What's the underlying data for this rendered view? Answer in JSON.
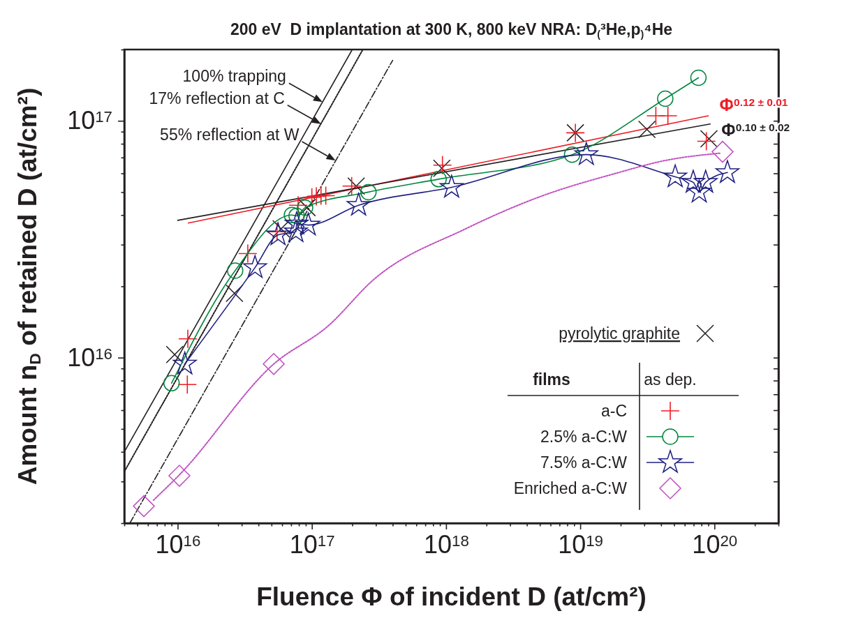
{
  "chart_data": {
    "type": "scatter",
    "title": "200 eV  D implantation at 300 K, 800 keV NRA: D$_{(}$³He,p$_{)}$⁴He",
    "xlabel": "Fluence Φ of incident D (at/cm²)",
    "ylabel": "Amount n$_{D}$ of retained D (at/cm²)",
    "legend_title": "films",
    "log": "xy",
    "grid": false,
    "legend": "bottom right",
    "xlim": [
      4000000000000000.0,
      3e+20
    ],
    "ylim": [
      2000000000000000.0,
      2e+17
    ],
    "xticks": [
      {
        "value": 4000000000000000.0,
        "label": null
      },
      {
        "value": 5000000000000000.0,
        "label": null
      },
      {
        "value": 6000000000000000.0,
        "label": null
      },
      {
        "value": 7000000000000000.0,
        "label": null
      },
      {
        "value": 8000000000000000.0,
        "label": null
      },
      {
        "value": 9000000000000000.0,
        "label": null
      },
      {
        "value": 1e+16,
        "label": "10$^{16}$"
      },
      {
        "value": 2e+16,
        "label": null
      },
      {
        "value": 3e+16,
        "label": null
      },
      {
        "value": 4e+16,
        "label": null
      },
      {
        "value": 5e+16,
        "label": null
      },
      {
        "value": 6e+16,
        "label": null
      },
      {
        "value": 7e+16,
        "label": null
      },
      {
        "value": 8e+16,
        "label": null
      },
      {
        "value": 9e+16,
        "label": null
      },
      {
        "value": 1e+17,
        "label": "10$^{17}$"
      },
      {
        "value": 2e+17,
        "label": null
      },
      {
        "value": 3e+17,
        "label": null
      },
      {
        "value": 4e+17,
        "label": null
      },
      {
        "value": 5e+17,
        "label": null
      },
      {
        "value": 6e+17,
        "label": null
      },
      {
        "value": 7e+17,
        "label": null
      },
      {
        "value": 8e+17,
        "label": null
      },
      {
        "value": 9e+17,
        "label": null
      },
      {
        "value": 1e+18,
        "label": "10$^{18}$"
      },
      {
        "value": 2e+18,
        "label": null
      },
      {
        "value": 3e+18,
        "label": null
      },
      {
        "value": 4e+18,
        "label": null
      },
      {
        "value": 5e+18,
        "label": null
      },
      {
        "value": 6e+18,
        "label": null
      },
      {
        "value": 7e+18,
        "label": null
      },
      {
        "value": 8e+18,
        "label": null
      },
      {
        "value": 9e+18,
        "label": null
      },
      {
        "value": 1e+19,
        "label": "10$^{19}$"
      },
      {
        "value": 2e+19,
        "label": null
      },
      {
        "value": 3e+19,
        "label": null
      },
      {
        "value": 4e+19,
        "label": null
      },
      {
        "value": 5e+19,
        "label": null
      },
      {
        "value": 6e+19,
        "label": null
      },
      {
        "value": 7e+19,
        "label": null
      },
      {
        "value": 8e+19,
        "label": null
      },
      {
        "value": 9e+19,
        "label": null
      },
      {
        "value": 1e+20,
        "label": "10$^{20}$"
      },
      {
        "value": 2e+20,
        "label": null
      },
      {
        "value": 3e+20,
        "label": null
      }
    ],
    "yticks": [
      {
        "value": 2000000000000000.0,
        "label": null
      },
      {
        "value": 3000000000000000.0,
        "label": null
      },
      {
        "value": 4000000000000000.0,
        "label": null
      },
      {
        "value": 5000000000000000.0,
        "label": null
      },
      {
        "value": 6000000000000000.0,
        "label": null
      },
      {
        "value": 7000000000000000.0,
        "label": null
      },
      {
        "value": 8000000000000000.0,
        "label": null
      },
      {
        "value": 9000000000000000.0,
        "label": null
      },
      {
        "value": 1e+16,
        "label": "10$^{16}$"
      },
      {
        "value": 2e+16,
        "label": null
      },
      {
        "value": 3e+16,
        "label": null
      },
      {
        "value": 4e+16,
        "label": null
      },
      {
        "value": 5e+16,
        "label": null
      },
      {
        "value": 6e+16,
        "label": null
      },
      {
        "value": 7e+16,
        "label": null
      },
      {
        "value": 8e+16,
        "label": null
      },
      {
        "value": 9e+16,
        "label": null
      },
      {
        "value": 1e+17,
        "label": "10$^{17}$"
      },
      {
        "value": 2e+17,
        "label": null
      }
    ],
    "annotations": [
      {
        "text": "100% trapping",
        "x": 1.2e+17,
        "y": 1.2e+17
      },
      {
        "text": "17% reflection at C",
        "x": 1.17e+17,
        "y": 9.7e+16
      },
      {
        "text": "55% reflection at W",
        "x": 1.5e+17,
        "y": 6.8e+16
      },
      "as dep."
    ],
    "series": [
      {
        "type": "line",
        "color": "#231f20",
        "line_style": "solid",
        "x": [
          4000000000000000.0,
          2e+17
        ],
        "values": [
          4000000000000000.0,
          2e+17
        ]
      },
      {
        "type": "line",
        "color": "#231f20",
        "line_style": "dotted",
        "x": [
          4000000000000000.0,
          2.4e+17
        ],
        "values": [
          3300000000000000.0,
          2e+17
        ]
      },
      {
        "type": "line",
        "color": "#231f20",
        "line_style": "dashed",
        "x": [
          4400000000000000.0,
          4e+17
        ],
        "values": [
          2000000000000000.0,
          1.8e+17
        ]
      },
      {
        "type": "line",
        "name": "Φ$^{0.12 ± 0.01}$",
        "color": "#ee1c25",
        "marker": "none",
        "x": [
          1.2e+16,
          9e+19
        ],
        "values": [
          3.7e+16,
          1.05e+17
        ]
      },
      {
        "type": "line",
        "name": "Φ$^{0.10 ± 0.02}$",
        "color": "#231f20",
        "marker": "none",
        "x": [
          1e+16,
          9.3e+19
        ],
        "values": [
          3.8e+16,
          9.7e+16
        ]
      },
      {
        "name": "pyrolytic graphite",
        "color": "#231f20",
        "marker": "x",
        "x": [
          9500000000000000.0,
          2.65e+16,
          5.9e+16,
          9.2e+16,
          2.14e+17,
          9.3e+17,
          9.2e+18,
          3.14e+19,
          9.1e+19
        ],
        "values": [
          1.03e+16,
          1.87e+16,
          3.5e+16,
          4.3e+16,
          5.3e+16,
          6.3e+16,
          8.9e+16,
          9.2e+16,
          8.4e+16
        ]
      },
      {
        "name": "a-C",
        "color": "#ee1c25",
        "marker": "cross",
        "x": [
          1.19e+16,
          1.18e+16,
          3.33e+16,
          5.5e+16,
          7.9e+16,
          1e+17,
          1.08e+17,
          1.17e+17,
          1.27e+17,
          1.98e+17,
          9.4e+17,
          9.2e+18,
          3.66e+19,
          4.5e+19,
          8.7e+19
        ],
        "values": [
          1.2e+16,
          7700000000000000.0,
          2.75e+16,
          3.4e+16,
          4.4e+16,
          4.75e+16,
          4.8e+16,
          4.83e+16,
          4.83e+16,
          5.3e+16,
          6.5e+16,
          8.9e+16,
          1.05e+17,
          1.05e+17,
          8.2e+16
        ]
      },
      {
        "type": "line",
        "name": "2.5% a-C:W",
        "color": "#00873e",
        "marker": "circle",
        "x": [
          9000000000000000.0,
          2.68e+16,
          7.1e+16,
          7.7e+16,
          8.9e+16,
          2.64e+17,
          8.8e+17,
          8.7e+18,
          4.3e+19,
          7.6e+19
        ],
        "values": [
          7800000000000000.0,
          2.33e+16,
          4e+16,
          3.97e+16,
          4.3e+16,
          5e+16,
          5.67e+16,
          7.2e+16,
          1.24e+17,
          1.52e+17
        ]
      },
      {
        "type": "line",
        "name": "7.5% a-C:W",
        "color": "#1f1f80",
        "marker": "star",
        "x": [
          1.13e+16,
          3.77e+16,
          5.6e+16,
          7.6e+16,
          7.7e+16,
          9.4e+16,
          2.23e+17,
          1.1e+18,
          1.11e+19,
          5.1e+19,
          6.95e+19,
          7.7e+19,
          8.6e+19,
          1.25e+20
        ],
        "values": [
          9400000000000000.0,
          2.4e+16,
          3.3e+16,
          3.4e+16,
          3.67e+16,
          3.63e+16,
          4.4e+16,
          5.24e+16,
          7.2e+16,
          5.8e+16,
          5.5e+16,
          5e+16,
          5.5e+16,
          6.05e+16
        ]
      },
      {
        "name": "Enriched a-C:W",
        "color": "#c050c0",
        "marker": "diamond",
        "x": [
          5600000000000000.0,
          1.03e+16,
          5.2e+16,
          1.15e+20
        ],
        "values": [
          2360000000000000.0,
          3170000000000000.0,
          9400000000000000.0,
          7.4e+16
        ]
      },
      {
        "type": "line",
        "color": "#c050c0",
        "line_style": "dotted",
        "x": [
          6600000000000000.0,
          1.03e+16,
          5.2e+16,
          1.32e+17,
          2.9e+17,
          1.4e+18,
          5.1e+18,
          1.84e+19,
          4.3e+19,
          1.1e+20
        ],
        "values": [
          2500000000000000.0,
          3200000000000000.0,
          9400000000000000.0,
          1.36e+16,
          2.14e+16,
          3.5e+16,
          4.8e+16,
          6e+16,
          6.8e+16,
          7.3e+16
        ]
      }
    ]
  }
}
